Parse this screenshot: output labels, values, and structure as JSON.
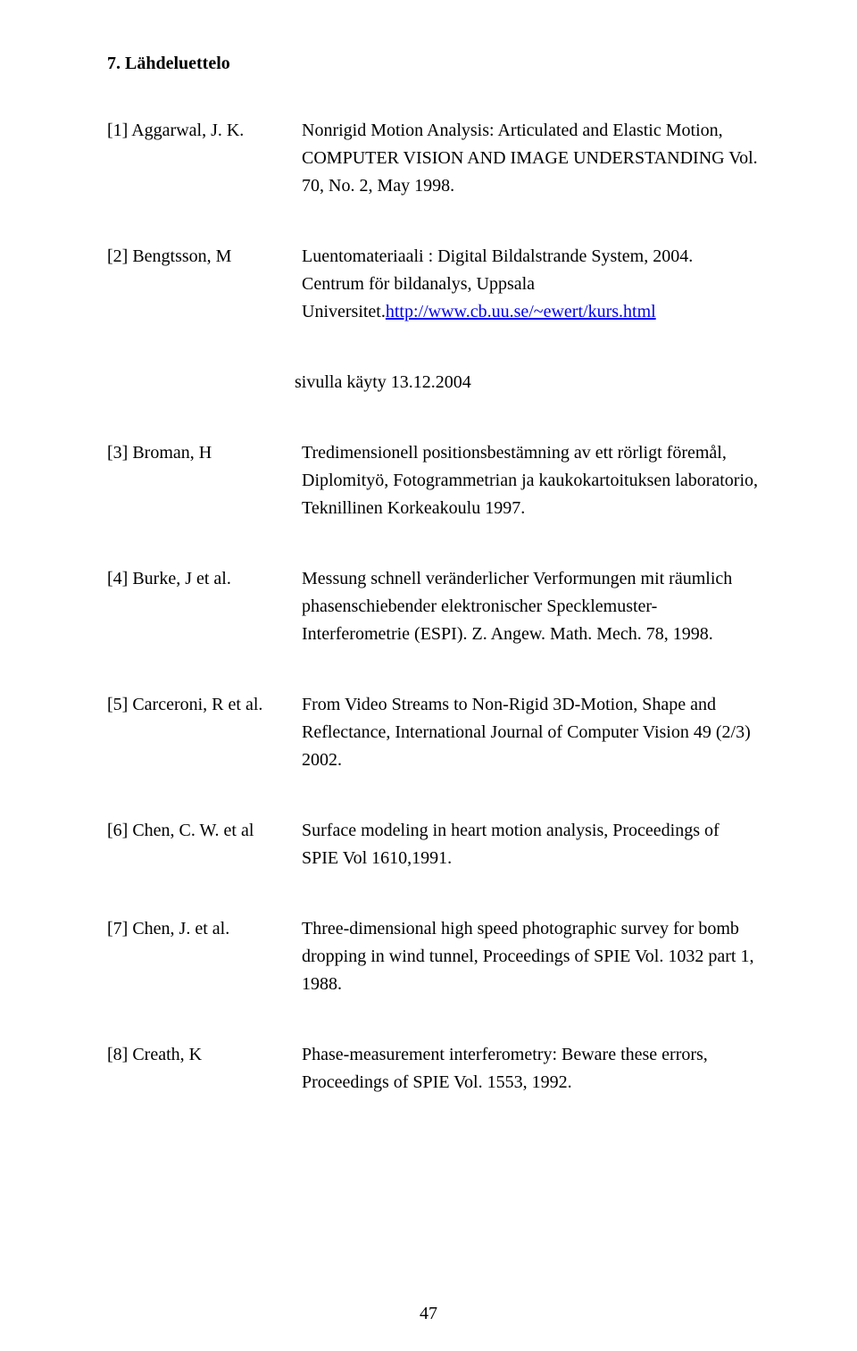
{
  "heading": "7. Lähdeluettelo",
  "refs": [
    {
      "key": "[1] Aggarwal, J. K.",
      "desc_pre": "Nonrigid Motion Analysis: Articulated and Elastic Motion, COMPUTER VISION AND IMAGE UNDERSTANDING Vol. 70, No. 2, May 1998.",
      "link": "",
      "desc_post": ""
    },
    {
      "key": "[2] Bengtsson, M",
      "desc_pre": "Luentomateriaali : Digital Bildalstrande System, 2004. Centrum för bildanalys, Uppsala Universitet.",
      "link": "http://www.cb.uu.se/~ewert/kurs.html",
      "desc_post": ""
    },
    {
      "key": "[3] Broman, H",
      "desc_pre": "Tredimensionell positionsbestämning av ett rörligt föremål, Diplomityö, Fotogrammetrian ja kaukokartoituksen laboratorio, Teknillinen Korkeakoulu 1997.",
      "link": "",
      "desc_post": ""
    },
    {
      "key": "[4] Burke, J et al.",
      "desc_pre": "Messung schnell veränderlicher Verformungen mit räumlich phasenschiebender elektronischer Specklemuster-Interferometrie (ESPI). Z. Angew. Math. Mech. 78, 1998.",
      "link": "",
      "desc_post": ""
    },
    {
      "key": "[5] Carceroni, R et al.",
      "desc_pre": "From Video Streams to Non-Rigid 3D-Motion, Shape and Reflectance, International Journal of Computer Vision 49 (2/3) 2002.",
      "link": "",
      "desc_post": ""
    },
    {
      "key": "[6] Chen, C. W. et al",
      "desc_pre": "Surface modeling in heart motion analysis, Proceedings of SPIE Vol 1610,1991.",
      "link": "",
      "desc_post": ""
    },
    {
      "key": "[7] Chen, J. et al.",
      "desc_pre": "Three-dimensional high speed photographic survey for bomb dropping in wind tunnel, Proceedings of SPIE Vol. 1032 part 1, 1988.",
      "link": "",
      "desc_post": ""
    },
    {
      "key": "[8] Creath, K",
      "desc_pre": "Phase-measurement interferometry: Beware these errors, Proceedings of SPIE Vol. 1553, 1992.",
      "link": "",
      "desc_post": ""
    }
  ],
  "note_after_index": 1,
  "note": "sivulla käyty 13.12.2004",
  "page_number": "47",
  "link_color": "#0000ee",
  "text_color": "#000000",
  "background": "#ffffff",
  "font_family": "Times New Roman",
  "base_fontsize": 20
}
